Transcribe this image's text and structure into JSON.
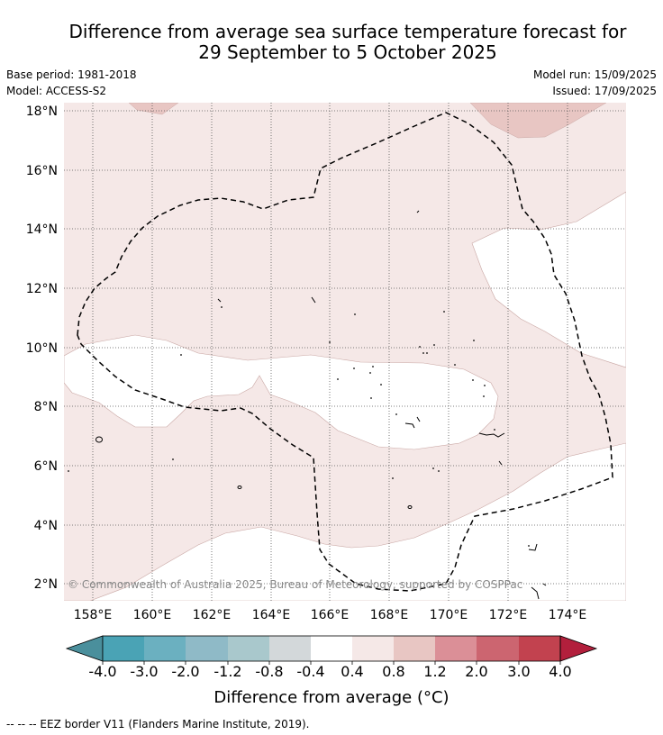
{
  "title": {
    "line1": "Difference from average sea surface temperature forecast for",
    "line2": "29 September to 5 October 2025"
  },
  "meta": {
    "base_period": "Base period: 1981-2018",
    "model": "Model: ACCESS-S2",
    "model_run": "Model run: 15/09/2025",
    "issued": "Issued: 17/09/2025"
  },
  "map": {
    "lat_labels": [
      "18°N",
      "16°N",
      "14°N",
      "12°N",
      "10°N",
      "8°N",
      "6°N",
      "4°N",
      "2°N"
    ],
    "lon_labels": [
      "158°E",
      "160°E",
      "162°E",
      "164°E",
      "166°E",
      "168°E",
      "170°E",
      "172°E",
      "174°E"
    ],
    "copyright": "© Commonwealth of Australia 2025, Bureau of Meteorology, supported by COSPPac",
    "colors": {
      "background": "#ffffff",
      "band_0_4_0_8": "#f5e8e7",
      "band_0_8_1_2": "#e8c6c3",
      "grid": "#555555",
      "eez_border": "#000000"
    }
  },
  "colorbar": {
    "title": "Difference from average (°C)",
    "labels": [
      "-4.0",
      "-3.0",
      "-2.0",
      "-1.2",
      "-0.8",
      "-0.4",
      "0.4",
      "0.8",
      "1.2",
      "2.0",
      "3.0",
      "4.0"
    ],
    "colors": [
      "#4a8f9c",
      "#4aa3b5",
      "#6bb0c0",
      "#8fbac7",
      "#a9c8cc",
      "#d3d8da",
      "#ffffff",
      "#f5e8e7",
      "#e8c6c3",
      "#db8f97",
      "#cc6570",
      "#c2424f",
      "#b21f3c"
    ]
  },
  "footnote": "-- -- -- EEZ border V11 (Flanders Marine Institute, 2019)."
}
